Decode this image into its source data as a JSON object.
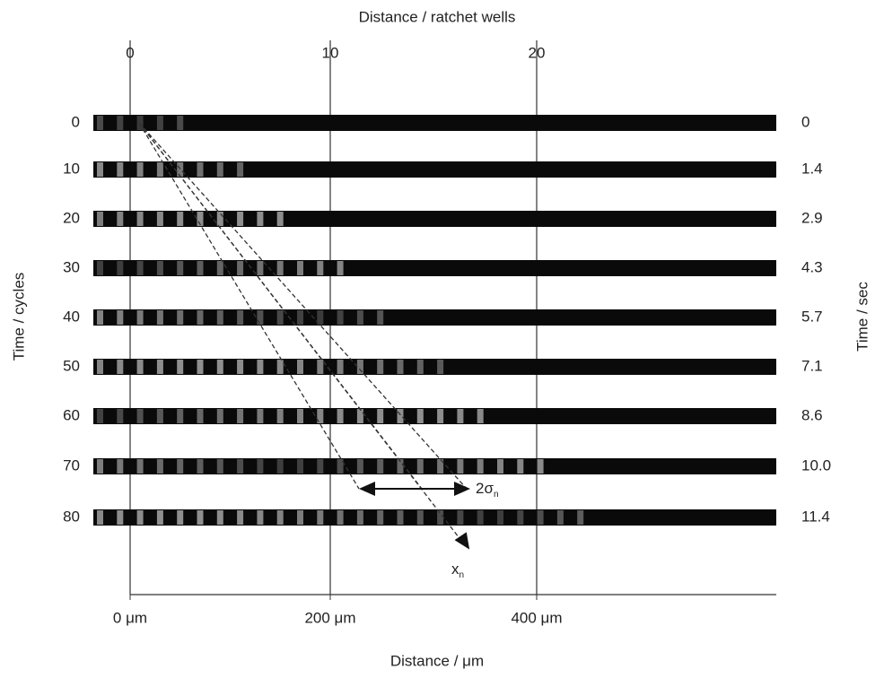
{
  "figure": {
    "top_axis": {
      "title": "Distance / ratchet wells",
      "ticks": [
        "0",
        "10",
        "20"
      ]
    },
    "bottom_axis": {
      "title": "Distance / μm",
      "ticks": [
        "0 μm",
        "200 μm",
        "400 μm"
      ]
    },
    "left_axis": {
      "title": "Time / cycles"
    },
    "right_axis": {
      "title": "Time / sec"
    },
    "rows": [
      {
        "cycles": "0",
        "sec": "0"
      },
      {
        "cycles": "10",
        "sec": "1.4"
      },
      {
        "cycles": "20",
        "sec": "2.9"
      },
      {
        "cycles": "30",
        "sec": "4.3"
      },
      {
        "cycles": "40",
        "sec": "5.7"
      },
      {
        "cycles": "50",
        "sec": "7.1"
      },
      {
        "cycles": "60",
        "sec": "8.6"
      },
      {
        "cycles": "70",
        "sec": "10.0"
      },
      {
        "cycles": "80",
        "sec": "11.4"
      }
    ],
    "width_annotation": {
      "text": "2σ",
      "subscript": "n"
    },
    "position_annotation": {
      "text": "x",
      "subscript": "n"
    }
  }
}
